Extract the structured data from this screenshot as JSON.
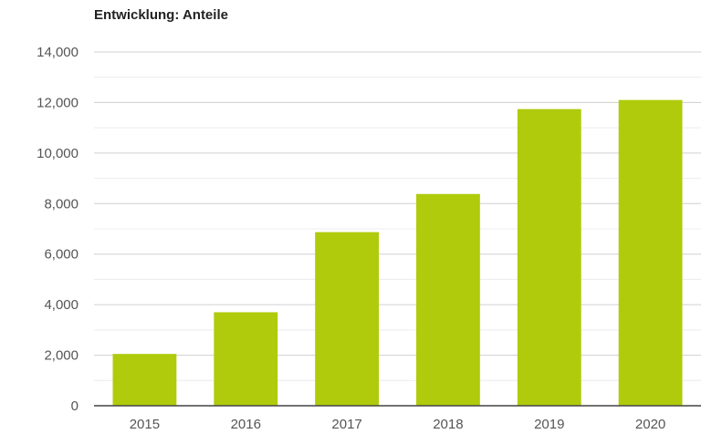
{
  "chart_data": {
    "type": "bar",
    "title": "Entwicklung: Anteile",
    "xlabel": "",
    "ylabel": "",
    "categories": [
      "2015",
      "2016",
      "2017",
      "2018",
      "2019",
      "2020"
    ],
    "values": [
      2050,
      3700,
      6870,
      8380,
      11740,
      12100
    ],
    "ylim": [
      0,
      14000
    ],
    "yticks": [
      0,
      2000,
      4000,
      6000,
      8000,
      10000,
      12000,
      14000
    ],
    "ytick_labels": [
      "0",
      "2,000",
      "4,000",
      "6,000",
      "8,000",
      "10,000",
      "12,000",
      "14,000"
    ],
    "grid": true,
    "legend": "none",
    "bar_color": "#b0cb0b",
    "grid_color": "#d0d0d0",
    "minor_grid_color": "#ececec"
  }
}
